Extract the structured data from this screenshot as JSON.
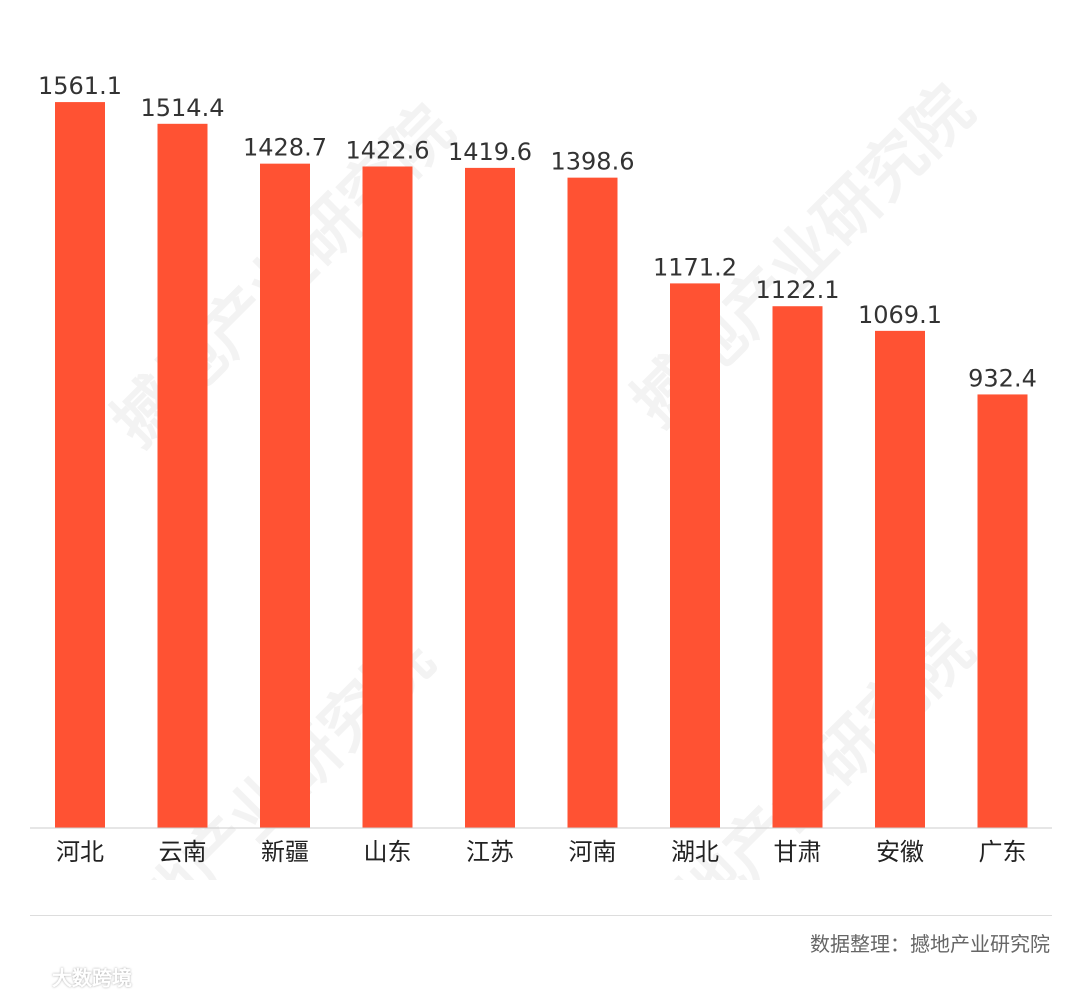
{
  "chart_data": {
    "type": "bar",
    "categories": [
      "河北",
      "云南",
      "新疆",
      "山东",
      "江苏",
      "河南",
      "湖北",
      "甘肃",
      "安徽",
      "广东"
    ],
    "values": [
      1561.1,
      1514.4,
      1428.7,
      1422.6,
      1419.6,
      1398.6,
      1171.2,
      1122.1,
      1069.1,
      932.4
    ],
    "value_labels": [
      "1561.1",
      "1514.4",
      "1428.7",
      "1422.6",
      "1419.6",
      "1398.6",
      "1171.2",
      "1122.1",
      "1069.1",
      "932.4"
    ],
    "title": "",
    "xlabel": "",
    "ylabel": "",
    "ylim": [
      0,
      1600
    ],
    "grid": false,
    "bar_color": "#ff5233",
    "axis_color": "#cccccc"
  },
  "watermark": {
    "text": "撼地产业研究院"
  },
  "source_note": "数据整理：撼地产业研究院",
  "brand": {
    "name": "大数跨境"
  }
}
